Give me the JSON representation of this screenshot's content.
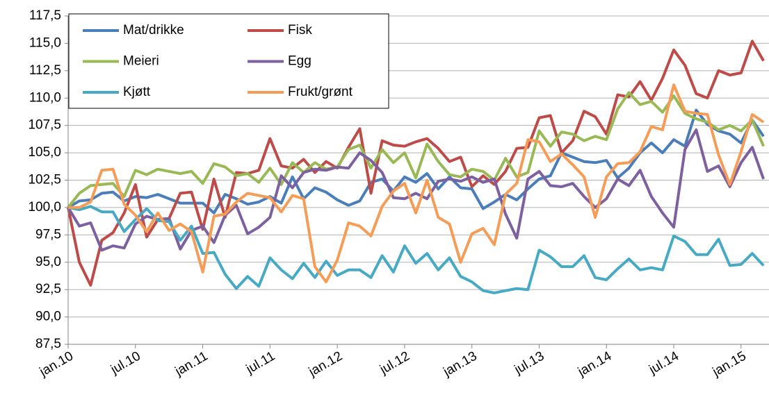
{
  "chart_data": {
    "type": "line",
    "categories": [
      "jan.10",
      null,
      null,
      null,
      null,
      null,
      "jul.10",
      null,
      null,
      null,
      null,
      null,
      "jan.11",
      null,
      null,
      null,
      null,
      null,
      "jul.11",
      null,
      null,
      null,
      null,
      null,
      "jan.12",
      null,
      null,
      null,
      null,
      null,
      "jul.12",
      null,
      null,
      null,
      null,
      null,
      "jan.13",
      null,
      null,
      null,
      null,
      null,
      "jul.13",
      null,
      null,
      null,
      null,
      null,
      "jan.14",
      null,
      null,
      null,
      null,
      null,
      "jul.14",
      null,
      null,
      null,
      null,
      null,
      "jan.15",
      null,
      null
    ],
    "series": [
      {
        "name": "Mat/drikke",
        "color": "#4a7ebb",
        "values": [
          100,
          100.6,
          100.7,
          101.3,
          101.4,
          100.6,
          101.0,
          100.9,
          101.2,
          100.8,
          100.4,
          100.4,
          100.4,
          99.5,
          101.2,
          100.8,
          100.3,
          100.5,
          101.0,
          100.4,
          102.8,
          100.8,
          101.8,
          101.4,
          100.7,
          100.2,
          100.6,
          102.3,
          102.6,
          101.5,
          102.8,
          102.3,
          103.1,
          101.7,
          102.8,
          101.8,
          101.7,
          99.9,
          100.5,
          101.2,
          100.7,
          101.7,
          102.6,
          102.9,
          105.0,
          104.6,
          104.2,
          104.1,
          104.3,
          102.7,
          103.6,
          105.0,
          105.9,
          105.0,
          106.2,
          105.6,
          108.9,
          107.6,
          107.0,
          106.7,
          105.9,
          108.0,
          106.5
        ]
      },
      {
        "name": "Fisk",
        "color": "#be4b48",
        "values": [
          100,
          95.0,
          92.9,
          97.0,
          97.7,
          99.5,
          102.1,
          97.3,
          98.9,
          99.0,
          101.3,
          101.4,
          98.0,
          102.6,
          99.1,
          103.2,
          103.1,
          103.4,
          106.3,
          103.8,
          103.6,
          104.4,
          103.2,
          104.2,
          103.6,
          105.5,
          107.2,
          101.3,
          106.1,
          105.7,
          105.6,
          106.0,
          106.3,
          105.4,
          104.2,
          104.6,
          101.9,
          102.9,
          102.1,
          103.3,
          105.4,
          105.5,
          108.2,
          108.4,
          105.0,
          106.1,
          108.8,
          108.3,
          106.7,
          110.3,
          110.1,
          111.5,
          109.8,
          111.8,
          114.4,
          113.0,
          110.4,
          110.0,
          112.5,
          112.1,
          112.3,
          115.2,
          113.4
        ]
      },
      {
        "name": "Meieri",
        "color": "#98b954",
        "values": [
          100,
          101.3,
          102.0,
          102.1,
          102.2,
          101.0,
          103.4,
          103.0,
          103.5,
          103.3,
          103.1,
          103.3,
          102.2,
          104.0,
          103.7,
          102.9,
          103.1,
          102.3,
          103.6,
          102.1,
          104.1,
          103.2,
          104.1,
          103.5,
          103.7,
          105.3,
          105.7,
          103.6,
          105.3,
          104.1,
          105.0,
          102.7,
          105.8,
          104.2,
          103.0,
          102.8,
          103.5,
          103.3,
          102.5,
          104.5,
          102.8,
          103.2,
          107.0,
          105.6,
          106.9,
          106.7,
          106.1,
          106.5,
          106.2,
          109.0,
          110.5,
          109.4,
          109.7,
          108.7,
          110.2,
          108.6,
          108.1,
          107.8,
          107.1,
          107.5,
          107.0,
          108.0,
          105.6
        ]
      },
      {
        "name": "Egg",
        "color": "#7d60a0",
        "values": [
          100,
          98.3,
          98.6,
          96.1,
          96.5,
          96.3,
          98.5,
          99.2,
          98.9,
          99.0,
          96.2,
          97.9,
          98.3,
          96.8,
          99.3,
          100.2,
          97.6,
          98.2,
          99.1,
          102.9,
          101.8,
          103.2,
          103.5,
          103.4,
          103.7,
          103.6,
          105.0,
          104.3,
          103.2,
          100.9,
          100.8,
          101.3,
          100.8,
          102.4,
          102.6,
          102.4,
          102.8,
          102.3,
          102.6,
          99.4,
          97.2,
          102.6,
          103.3,
          102.0,
          101.9,
          102.2,
          101.0,
          100.0,
          100.8,
          102.6,
          102.0,
          103.4,
          101.0,
          99.5,
          98.2,
          105.3,
          107.1,
          103.3,
          103.8,
          101.9,
          104.1,
          105.5,
          102.6
        ]
      },
      {
        "name": "Kjøtt",
        "color": "#46aac5",
        "values": [
          100,
          99.8,
          100.1,
          99.6,
          99.6,
          97.8,
          98.9,
          99.9,
          98.8,
          98.7,
          97.0,
          98.3,
          95.8,
          95.9,
          93.9,
          92.6,
          93.7,
          92.8,
          95.4,
          94.3,
          93.5,
          94.9,
          93.6,
          95.1,
          93.8,
          94.3,
          94.3,
          93.6,
          95.6,
          94.1,
          96.5,
          94.9,
          95.8,
          94.3,
          95.4,
          93.7,
          93.2,
          92.4,
          92.2,
          92.4,
          92.6,
          92.5,
          96.1,
          95.5,
          94.6,
          94.6,
          95.6,
          93.6,
          93.4,
          94.4,
          95.3,
          94.3,
          94.5,
          94.3,
          97.4,
          96.9,
          95.7,
          95.7,
          97.1,
          94.7,
          94.8,
          95.8,
          94.7
        ]
      },
      {
        "name": "Frukt/grønt",
        "color": "#f59d56",
        "values": [
          100,
          100.0,
          100.5,
          103.4,
          103.5,
          100.3,
          99.3,
          97.8,
          99.5,
          97.9,
          98.5,
          97.8,
          94.1,
          99.2,
          99.4,
          100.5,
          101.3,
          101.1,
          100.9,
          99.6,
          101.1,
          100.8,
          94.6,
          93.2,
          95.2,
          98.6,
          98.3,
          97.4,
          100.1,
          101.5,
          102.2,
          99.5,
          102.5,
          99.1,
          98.5,
          95.0,
          97.6,
          98.1,
          96.6,
          101.2,
          102.2,
          106.2,
          106.0,
          104.2,
          104.9,
          103.9,
          102.8,
          99.1,
          102.8,
          104.0,
          104.1,
          105.1,
          107.4,
          107.1,
          111.2,
          108.8,
          108.6,
          108.5,
          104.8,
          102.1,
          105.1,
          108.5,
          107.8
        ]
      }
    ],
    "ylim": [
      87.5,
      117.5
    ],
    "yticks": [
      {
        "value": 87.5,
        "label": "87,5"
      },
      {
        "value": 90,
        "label": "90,0"
      },
      {
        "value": 92.5,
        "label": "92,5"
      },
      {
        "value": 95,
        "label": "95,0"
      },
      {
        "value": 97.5,
        "label": "97,5"
      },
      {
        "value": 100,
        "label": "100,0"
      },
      {
        "value": 102.5,
        "label": "102,5"
      },
      {
        "value": 105,
        "label": "105,0"
      },
      {
        "value": 107.5,
        "label": "107,5"
      },
      {
        "value": 110,
        "label": "110,0"
      },
      {
        "value": 112.5,
        "label": "112,5"
      },
      {
        "value": 115,
        "label": "115,0"
      },
      {
        "value": 117.5,
        "label": "117,5"
      }
    ],
    "grid": true,
    "legend": "top-left"
  }
}
